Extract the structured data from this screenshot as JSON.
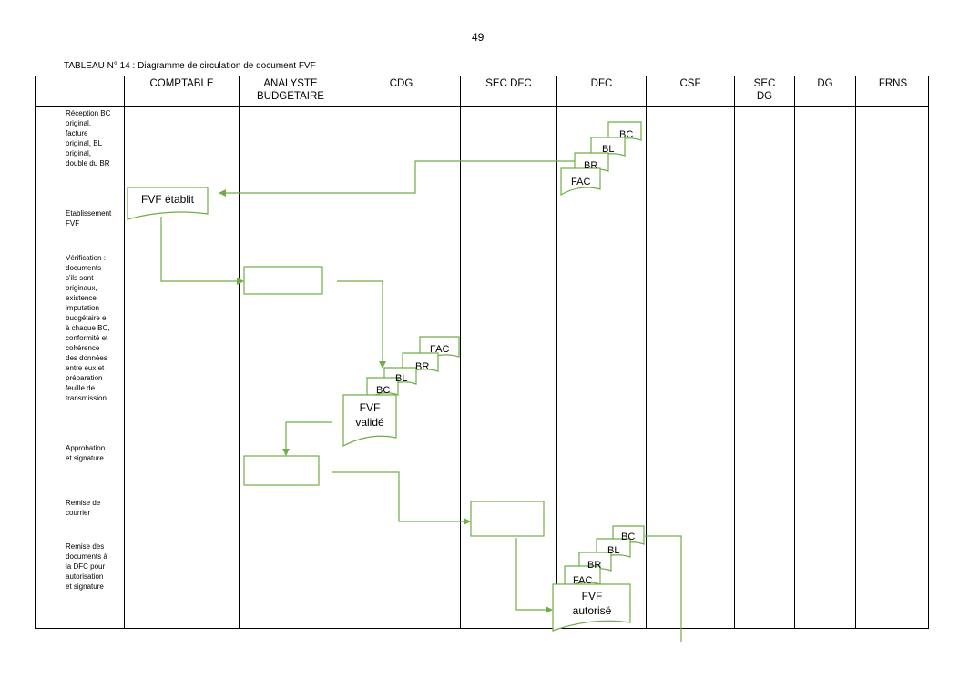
{
  "page_number": "49",
  "caption": "TABLEAU N° 14 : Diagramme de circulation de document FVF",
  "columns": [
    {
      "label_lines": [
        "COMPTABLE"
      ]
    },
    {
      "label_lines": [
        "ANALYSTE",
        "BUDGETAIRE"
      ]
    },
    {
      "label_lines": [
        "CDG"
      ]
    },
    {
      "label_lines": [
        "SEC DFC"
      ]
    },
    {
      "label_lines": [
        "DFC"
      ]
    },
    {
      "label_lines": [
        "CSF"
      ]
    },
    {
      "label_lines": [
        "SEC",
        "DG"
      ]
    },
    {
      "label_lines": [
        "DG"
      ]
    },
    {
      "label_lines": [
        "FRNS"
      ]
    }
  ],
  "steps": [
    {
      "lines": [
        "Réception BC",
        "original,",
        "facture",
        "original, BL",
        "original,",
        "double du BR"
      ]
    },
    {
      "lines": [
        "Etablissement",
        "FVF"
      ]
    },
    {
      "lines": [
        "Vérification :",
        "documents",
        "s'ils sont",
        "originaux,",
        "existence",
        "imputation",
        "budgétaire e",
        "à chaque BC,",
        "conformité et",
        "cohérence",
        "des données",
        "entre eux  et",
        "préparation",
        "feuille de",
        "transmission"
      ]
    },
    {
      "lines": [
        "Approbation",
        "et signature"
      ]
    },
    {
      "lines": [
        "Remise  de",
        "courrier"
      ]
    },
    {
      "lines": [
        "Remise des",
        "documents  à",
        "la DFC pour",
        "autorisation",
        "et signature"
      ]
    }
  ],
  "documents": {
    "bc": "BC",
    "bl": "BL",
    "br": "BR",
    "fac": "FAC",
    "fvf_etablit": "FVF établit",
    "fvf_valide_lines": [
      "FVF",
      "validé"
    ],
    "fvf_autorise_lines": [
      "FVF",
      "autorisé"
    ]
  },
  "colors": {
    "flow_stroke": "#70ad47",
    "grid": "#000000"
  }
}
